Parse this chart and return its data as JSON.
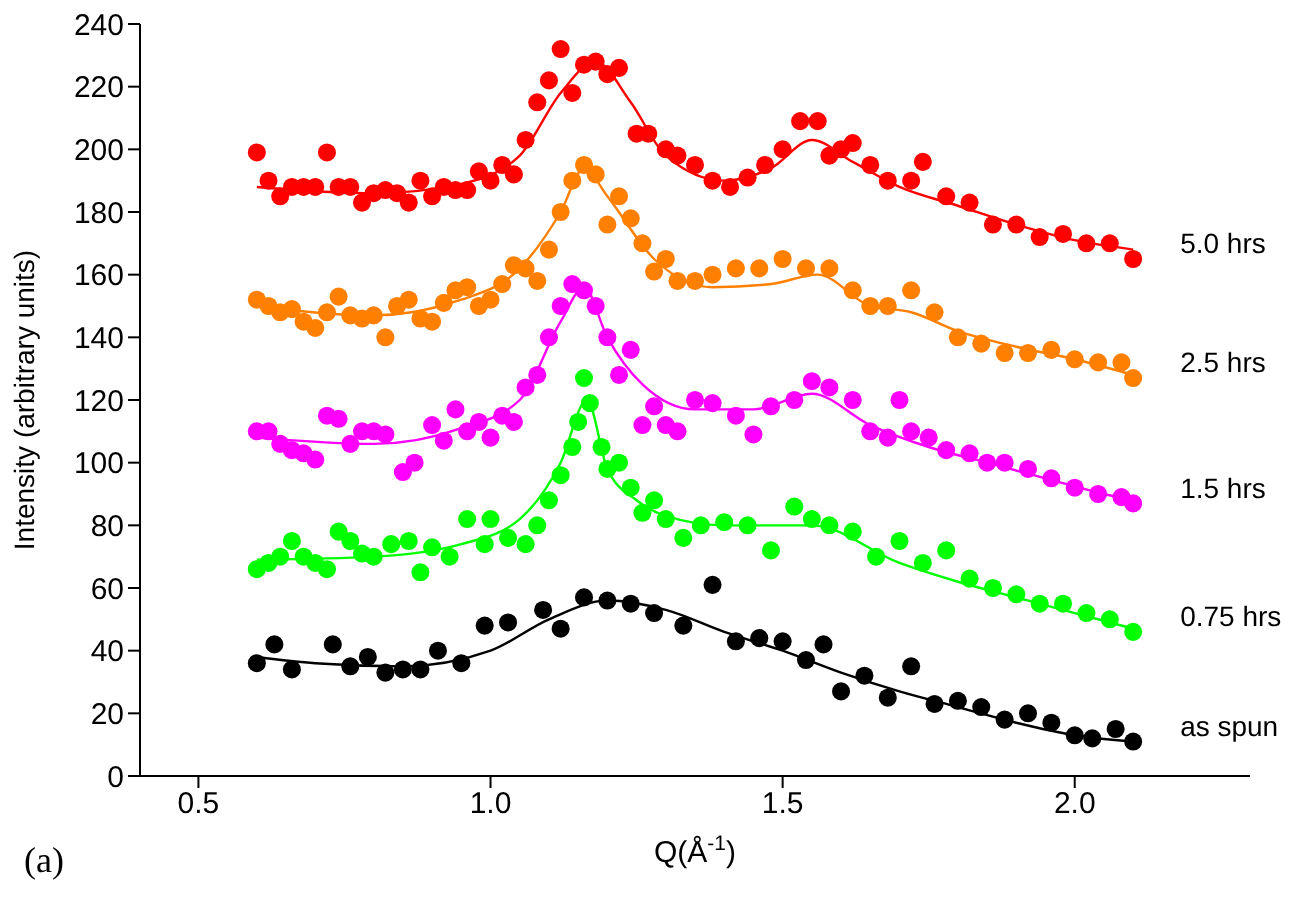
{
  "chart_data": {
    "type": "scatter",
    "xlabel": "Q(Å$^{-1}$)",
    "ylabel": "Intensity (arbitrary units)",
    "xlim": [
      0.4,
      2.3
    ],
    "ylim": [
      0,
      240
    ],
    "xticks": [
      0.5,
      {
        "value": 1,
        "label": "1.0"
      },
      1.5,
      {
        "value": 2,
        "label": "2.0"
      }
    ],
    "yticks": [
      0,
      20,
      40,
      60,
      80,
      100,
      120,
      140,
      160,
      180,
      200,
      220,
      240
    ],
    "marker": "circle",
    "annotations": [
      "(a)"
    ],
    "series": [
      {
        "name": "5.0 hrs",
        "color": "#ff0000",
        "x": [
          0.6,
          0.62,
          0.64,
          0.66,
          0.68,
          0.7,
          0.72,
          0.74,
          0.76,
          0.78,
          0.8,
          0.82,
          0.84,
          0.86,
          0.88,
          0.9,
          0.92,
          0.94,
          0.96,
          0.98,
          1.0,
          1.02,
          1.04,
          1.06,
          1.08,
          1.1,
          1.12,
          1.14,
          1.16,
          1.18,
          1.2,
          1.22,
          1.25,
          1.27,
          1.3,
          1.32,
          1.35,
          1.38,
          1.41,
          1.44,
          1.47,
          1.5,
          1.53,
          1.56,
          1.58,
          1.6,
          1.62,
          1.65,
          1.68,
          1.72,
          1.74,
          1.78,
          1.82,
          1.86,
          1.9,
          1.94,
          1.98,
          2.02,
          2.06,
          2.1
        ],
        "values": [
          199,
          190,
          185,
          188,
          188,
          188,
          199,
          188,
          188,
          183,
          186,
          187,
          186,
          183,
          190,
          185,
          188,
          187,
          187,
          193,
          190,
          195,
          192,
          203,
          215,
          222,
          232,
          218,
          227,
          228,
          224,
          226,
          205,
          205,
          200,
          198,
          195,
          190,
          188,
          191,
          195,
          200,
          209,
          209,
          198,
          200,
          202,
          195,
          190,
          190,
          196,
          185,
          183,
          176,
          176,
          172,
          173,
          170,
          170,
          165
        ]
      },
      {
        "type": "line",
        "marker": "none",
        "color": "#ff0000",
        "x": [
          0.6,
          0.8,
          0.95,
          1.05,
          1.12,
          1.18,
          1.24,
          1.3,
          1.4,
          1.48,
          1.55,
          1.62,
          1.7,
          1.8,
          1.9,
          2.0,
          2.1
        ],
        "values": [
          188,
          186,
          189,
          198,
          218,
          228,
          215,
          198,
          190,
          194,
          203,
          196,
          188,
          182,
          176,
          171,
          168
        ]
      },
      {
        "name": "2.5 hrs",
        "color": "#ff8000",
        "x": [
          0.6,
          0.62,
          0.64,
          0.66,
          0.68,
          0.7,
          0.72,
          0.74,
          0.76,
          0.78,
          0.8,
          0.82,
          0.84,
          0.86,
          0.88,
          0.9,
          0.92,
          0.94,
          0.96,
          0.98,
          1.0,
          1.02,
          1.04,
          1.06,
          1.08,
          1.1,
          1.12,
          1.14,
          1.16,
          1.18,
          1.2,
          1.22,
          1.24,
          1.26,
          1.28,
          1.3,
          1.32,
          1.35,
          1.38,
          1.42,
          1.46,
          1.5,
          1.54,
          1.58,
          1.62,
          1.65,
          1.68,
          1.72,
          1.76,
          1.8,
          1.84,
          1.88,
          1.92,
          1.96,
          2.0,
          2.04,
          2.08,
          2.1
        ],
        "values": [
          152,
          150,
          148,
          149,
          145,
          143,
          148,
          153,
          147,
          146,
          147,
          140,
          150,
          152,
          146,
          145,
          151,
          155,
          156,
          150,
          152,
          157,
          163,
          162,
          158,
          168,
          180,
          190,
          195,
          192,
          176,
          185,
          178,
          170,
          161,
          165,
          158,
          158,
          160,
          162,
          162,
          165,
          162,
          162,
          155,
          150,
          150,
          155,
          148,
          140,
          138,
          135,
          135,
          136,
          133,
          132,
          132,
          127
        ]
      },
      {
        "type": "line",
        "marker": "none",
        "color": "#ff8000",
        "x": [
          0.6,
          0.8,
          0.95,
          1.05,
          1.12,
          1.16,
          1.2,
          1.28,
          1.38,
          1.48,
          1.56,
          1.65,
          1.72,
          1.8,
          1.9,
          2.0,
          2.1
        ],
        "values": [
          150,
          147,
          152,
          162,
          180,
          194,
          185,
          165,
          156,
          157,
          160,
          150,
          148,
          142,
          137,
          133,
          128
        ]
      },
      {
        "name": "1.5 hrs",
        "color": "#ff00ff",
        "x": [
          0.6,
          0.62,
          0.64,
          0.66,
          0.68,
          0.7,
          0.72,
          0.74,
          0.76,
          0.78,
          0.8,
          0.82,
          0.85,
          0.87,
          0.9,
          0.92,
          0.94,
          0.96,
          0.98,
          1.0,
          1.02,
          1.04,
          1.06,
          1.08,
          1.1,
          1.12,
          1.14,
          1.16,
          1.18,
          1.2,
          1.22,
          1.24,
          1.26,
          1.28,
          1.3,
          1.32,
          1.35,
          1.38,
          1.42,
          1.45,
          1.48,
          1.52,
          1.55,
          1.58,
          1.62,
          1.65,
          1.68,
          1.7,
          1.72,
          1.75,
          1.78,
          1.82,
          1.85,
          1.88,
          1.92,
          1.96,
          2.0,
          2.04,
          2.08,
          2.1
        ],
        "values": [
          110,
          110,
          106,
          104,
          103,
          101,
          115,
          114,
          106,
          110,
          110,
          109,
          97,
          100,
          112,
          107,
          117,
          110,
          113,
          108,
          115,
          113,
          124,
          128,
          140,
          150,
          157,
          155,
          150,
          140,
          128,
          136,
          112,
          118,
          112,
          110,
          120,
          119,
          115,
          109,
          118,
          120,
          126,
          124,
          120,
          110,
          108,
          120,
          110,
          108,
          104,
          103,
          100,
          100,
          98,
          95,
          92,
          90,
          89,
          87
        ]
      },
      {
        "type": "line",
        "marker": "none",
        "color": "#ff00ff",
        "x": [
          0.6,
          0.8,
          0.95,
          1.05,
          1.12,
          1.16,
          1.2,
          1.26,
          1.35,
          1.45,
          1.55,
          1.65,
          1.75,
          1.85,
          1.95,
          2.05,
          2.1
        ],
        "values": [
          108,
          106,
          111,
          120,
          145,
          156,
          140,
          125,
          117,
          117,
          122,
          112,
          105,
          100,
          95,
          90,
          88
        ]
      },
      {
        "name": "0.75 hrs",
        "color": "#00ff00",
        "x": [
          0.6,
          0.62,
          0.64,
          0.66,
          0.68,
          0.7,
          0.72,
          0.74,
          0.76,
          0.78,
          0.8,
          0.83,
          0.86,
          0.88,
          0.9,
          0.93,
          0.96,
          0.99,
          1.0,
          1.03,
          1.06,
          1.08,
          1.1,
          1.12,
          1.14,
          1.15,
          1.16,
          1.17,
          1.19,
          1.2,
          1.22,
          1.24,
          1.26,
          1.28,
          1.3,
          1.33,
          1.36,
          1.4,
          1.44,
          1.48,
          1.52,
          1.55,
          1.58,
          1.62,
          1.66,
          1.7,
          1.74,
          1.78,
          1.82,
          1.86,
          1.9,
          1.94,
          1.98,
          2.02,
          2.06,
          2.1
        ],
        "values": [
          66,
          68,
          70,
          75,
          70,
          68,
          66,
          78,
          75,
          71,
          70,
          74,
          75,
          65,
          73,
          70,
          82,
          74,
          82,
          76,
          74,
          80,
          88,
          96,
          105,
          113,
          127,
          119,
          105,
          98,
          100,
          92,
          84,
          88,
          82,
          76,
          80,
          81,
          80,
          72,
          86,
          82,
          80,
          78,
          70,
          75,
          68,
          72,
          63,
          60,
          58,
          55,
          55,
          52,
          50,
          46
        ]
      },
      {
        "type": "line",
        "marker": "none",
        "color": "#00ff00",
        "x": [
          0.6,
          0.8,
          0.95,
          1.05,
          1.12,
          1.165,
          1.2,
          1.25,
          1.3,
          1.4,
          1.55,
          1.7,
          1.8,
          1.9,
          2.0,
          2.1
        ],
        "values": [
          69,
          70,
          74,
          82,
          100,
          120,
          98,
          88,
          83,
          80,
          80,
          68,
          62,
          57,
          52,
          47
        ]
      },
      {
        "name": "as spun",
        "color": "#000000",
        "x": [
          0.6,
          0.63,
          0.66,
          0.73,
          0.76,
          0.79,
          0.82,
          0.85,
          0.88,
          0.91,
          0.95,
          0.99,
          1.03,
          1.09,
          1.12,
          1.16,
          1.2,
          1.24,
          1.28,
          1.33,
          1.38,
          1.42,
          1.46,
          1.5,
          1.54,
          1.57,
          1.6,
          1.64,
          1.68,
          1.72,
          1.76,
          1.8,
          1.84,
          1.88,
          1.92,
          1.96,
          2.0,
          2.03,
          2.07,
          2.1
        ],
        "values": [
          36,
          42,
          34,
          42,
          35,
          38,
          33,
          34,
          34,
          40,
          36,
          48,
          49,
          53,
          47,
          57,
          56,
          55,
          52,
          48,
          61,
          43,
          44,
          43,
          37,
          42,
          27,
          32,
          25,
          35,
          23,
          24,
          22,
          18,
          20,
          17,
          13,
          12,
          15,
          11
        ]
      },
      {
        "type": "line",
        "marker": "none",
        "color": "#000000",
        "x": [
          0.6,
          0.7,
          0.85,
          1.0,
          1.1,
          1.2,
          1.3,
          1.4,
          1.5,
          1.6,
          1.7,
          1.8,
          1.9,
          2.0,
          2.1
        ],
        "values": [
          38,
          36,
          35,
          40,
          50,
          56,
          53,
          46,
          40,
          33,
          27,
          22,
          17,
          13,
          11
        ]
      }
    ]
  }
}
